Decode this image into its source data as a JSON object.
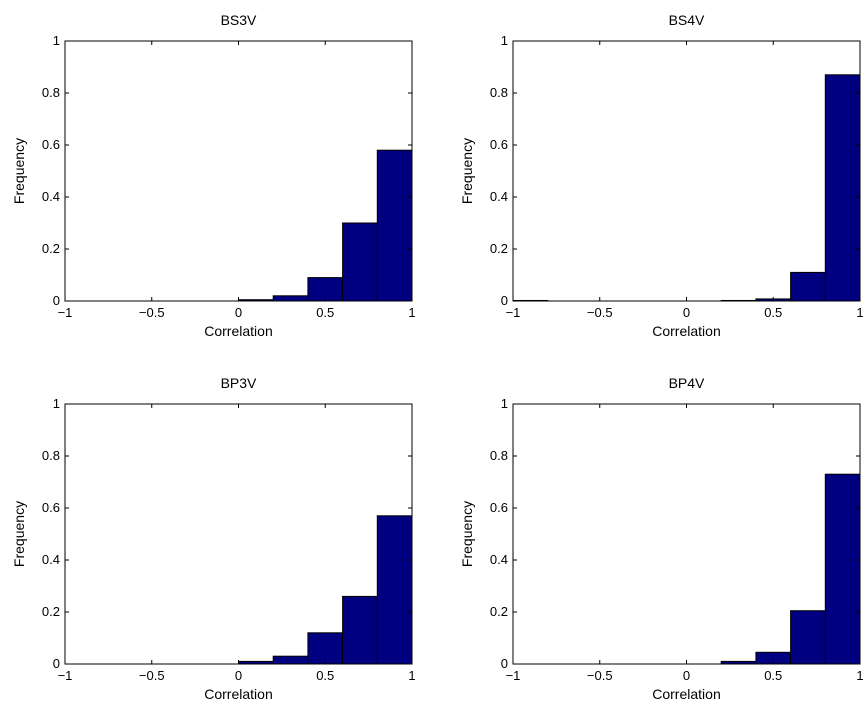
{
  "colors": {
    "bar_fill": "#000080",
    "bar_edge": "#000000",
    "axis": "#000000",
    "background": "#ffffff"
  },
  "chart_data": [
    {
      "type": "bar",
      "title": "BS3V",
      "xlabel": "Correlation",
      "ylabel": "Frequency",
      "xlim": [
        -1,
        1
      ],
      "ylim": [
        0,
        1
      ],
      "xticks": [
        "-1",
        "-0.5",
        "0",
        "0.5",
        "1"
      ],
      "yticks": [
        "0",
        "0.2",
        "0.4",
        "0.6",
        "0.8",
        "1"
      ],
      "bin_edges": [
        -1,
        -0.8,
        -0.6,
        -0.4,
        -0.2,
        0,
        0.2,
        0.4,
        0.6,
        0.8,
        1
      ],
      "values": [
        0,
        0,
        0,
        0,
        0,
        0.005,
        0.02,
        0.09,
        0.3,
        0.58
      ],
      "grid": false
    },
    {
      "type": "bar",
      "title": "BS4V",
      "xlabel": "Correlation",
      "ylabel": "Frequency",
      "xlim": [
        -1,
        1
      ],
      "ylim": [
        0,
        1
      ],
      "xticks": [
        "-1",
        "-0.5",
        "0",
        "0.5",
        "1"
      ],
      "yticks": [
        "0",
        "0.2",
        "0.4",
        "0.6",
        "0.8",
        "1"
      ],
      "bin_edges": [
        -1,
        -0.8,
        -0.6,
        -0.4,
        -0.2,
        0,
        0.2,
        0.4,
        0.6,
        0.8,
        1
      ],
      "values": [
        0.002,
        0,
        0,
        0,
        0,
        0,
        0.002,
        0.008,
        0.11,
        0.87
      ],
      "grid": false
    },
    {
      "type": "bar",
      "title": "BP3V",
      "xlabel": "Correlation",
      "ylabel": "Frequency",
      "xlim": [
        -1,
        1
      ],
      "ylim": [
        0,
        1
      ],
      "xticks": [
        "-1",
        "-0.5",
        "0",
        "0.5",
        "1"
      ],
      "yticks": [
        "0",
        "0.2",
        "0.4",
        "0.6",
        "0.8",
        "1"
      ],
      "bin_edges": [
        -1,
        -0.8,
        -0.6,
        -0.4,
        -0.2,
        0,
        0.2,
        0.4,
        0.6,
        0.8,
        1
      ],
      "values": [
        0,
        0,
        0,
        0,
        0,
        0.01,
        0.03,
        0.12,
        0.26,
        0.57
      ],
      "grid": false
    },
    {
      "type": "bar",
      "title": "BP4V",
      "xlabel": "Correlation",
      "ylabel": "Frequency",
      "xlim": [
        -1,
        1
      ],
      "ylim": [
        0,
        1
      ],
      "xticks": [
        "-1",
        "-0.5",
        "0",
        "0.5",
        "1"
      ],
      "yticks": [
        "0",
        "0.2",
        "0.4",
        "0.6",
        "0.8",
        "1"
      ],
      "bin_edges": [
        -1,
        -0.8,
        -0.6,
        -0.4,
        -0.2,
        0,
        0.2,
        0.4,
        0.6,
        0.8,
        1
      ],
      "values": [
        0,
        0,
        0,
        0,
        0,
        0,
        0.01,
        0.045,
        0.205,
        0.73
      ],
      "grid": false
    }
  ]
}
